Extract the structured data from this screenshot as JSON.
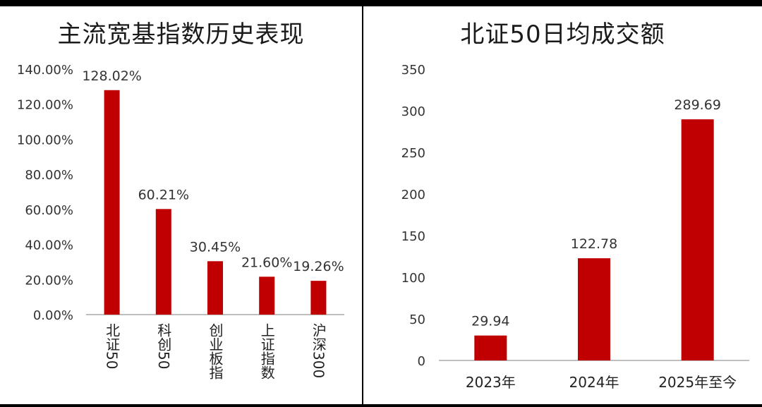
{
  "colors": {
    "bar": "#c00000",
    "axis": "#bfbfbf",
    "frame": "#000000"
  },
  "chart_data": [
    {
      "type": "bar",
      "title": "主流宽基指数历史表现",
      "categories": [
        "北证50",
        "科创50",
        "创业板指",
        "上证指数",
        "沪深300"
      ],
      "values": [
        128.02,
        60.21,
        30.45,
        21.6,
        19.26
      ],
      "value_labels": [
        "128.02%",
        "60.21%",
        "30.45%",
        "21.60%",
        "19.26%"
      ],
      "yticks": [
        "0.00%",
        "20.00%",
        "40.00%",
        "60.00%",
        "80.00%",
        "100.00%",
        "120.00%",
        "140.00%"
      ],
      "ylim": [
        0,
        140
      ],
      "xlabel": "",
      "ylabel": "",
      "grid": false
    },
    {
      "type": "bar",
      "title": "北证50日均成交额",
      "categories": [
        "2023年",
        "2024年",
        "2025年至今"
      ],
      "values": [
        29.94,
        122.78,
        289.69
      ],
      "value_labels": [
        "29.94",
        "122.78",
        "289.69"
      ],
      "yticks": [
        "0",
        "50",
        "100",
        "150",
        "200",
        "250",
        "300",
        "350"
      ],
      "ylim": [
        0,
        350
      ],
      "xlabel": "",
      "ylabel": "",
      "grid": false
    }
  ]
}
